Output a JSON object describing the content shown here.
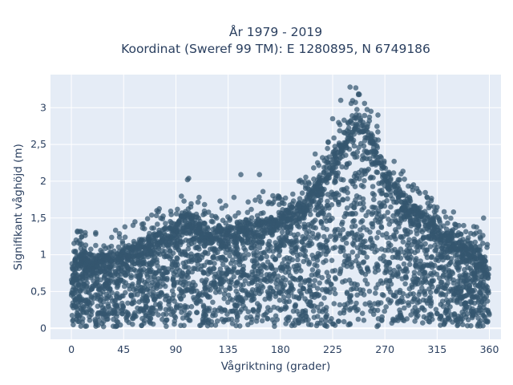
{
  "chart_data": {
    "type": "scatter",
    "title_line1": "År 1979 - 2019",
    "title_line2": "Koordinat (Sweref 99 TM): E 1280895, N 6749186",
    "xlabel": "Vågriktning (grader)",
    "ylabel": "Signifikant våghöjd (m)",
    "xlim": [
      -18,
      370
    ],
    "ylim": [
      -0.15,
      3.45
    ],
    "x_ticks": [
      0,
      45,
      90,
      135,
      180,
      225,
      270,
      315,
      360
    ],
    "x_tick_labels": [
      "0",
      "45",
      "90",
      "135",
      "180",
      "225",
      "270",
      "315",
      "360"
    ],
    "y_ticks": [
      0,
      0.5,
      1,
      1.5,
      2,
      2.5,
      3
    ],
    "y_tick_labels": [
      "0",
      "0,5",
      "1",
      "1,5",
      "2",
      "2,5",
      "3"
    ],
    "grid": true,
    "legend": "none",
    "marker_color": "#34566f",
    "plot_bg": "#e5ecf6",
    "envelope": {
      "description_points": [
        [
          0,
          0.85
        ],
        [
          5,
          1.05
        ],
        [
          20,
          1.0
        ],
        [
          45,
          1.1
        ],
        [
          60,
          1.2
        ],
        [
          90,
          1.45
        ],
        [
          100,
          1.6
        ],
        [
          120,
          1.35
        ],
        [
          150,
          1.45
        ],
        [
          180,
          1.55
        ],
        [
          200,
          1.75
        ],
        [
          215,
          2.1
        ],
        [
          230,
          2.5
        ],
        [
          245,
          2.95
        ],
        [
          255,
          2.8
        ],
        [
          270,
          2.2
        ],
        [
          290,
          1.75
        ],
        [
          310,
          1.5
        ],
        [
          330,
          1.3
        ],
        [
          350,
          1.1
        ],
        [
          360,
          0.85
        ]
      ],
      "outliers": [
        [
          4,
          1.2
        ],
        [
          7,
          1.19
        ],
        [
          28,
          1.12
        ],
        [
          62,
          1.42
        ],
        [
          97,
          1.73
        ],
        [
          100,
          2.02
        ],
        [
          101,
          2.04
        ],
        [
          110,
          1.78
        ],
        [
          128,
          1.73
        ],
        [
          140,
          1.78
        ],
        [
          146,
          2.09
        ],
        [
          162,
          2.09
        ],
        [
          165,
          1.86
        ],
        [
          178,
          1.8
        ],
        [
          196,
          2.0
        ],
        [
          210,
          2.37
        ],
        [
          218,
          2.28
        ],
        [
          225,
          2.85
        ],
        [
          232,
          3.1
        ],
        [
          240,
          3.28
        ],
        [
          245,
          3.27
        ],
        [
          248,
          3.18
        ],
        [
          258,
          2.95
        ],
        [
          264,
          2.9
        ],
        [
          278,
          2.27
        ],
        [
          284,
          2.1
        ],
        [
          294,
          1.88
        ],
        [
          307,
          1.7
        ],
        [
          324,
          1.43
        ],
        [
          331,
          1.37
        ],
        [
          344,
          1.29
        ],
        [
          355,
          1.5
        ],
        [
          358,
          1.1
        ]
      ],
      "min_y": 0.02
    }
  }
}
